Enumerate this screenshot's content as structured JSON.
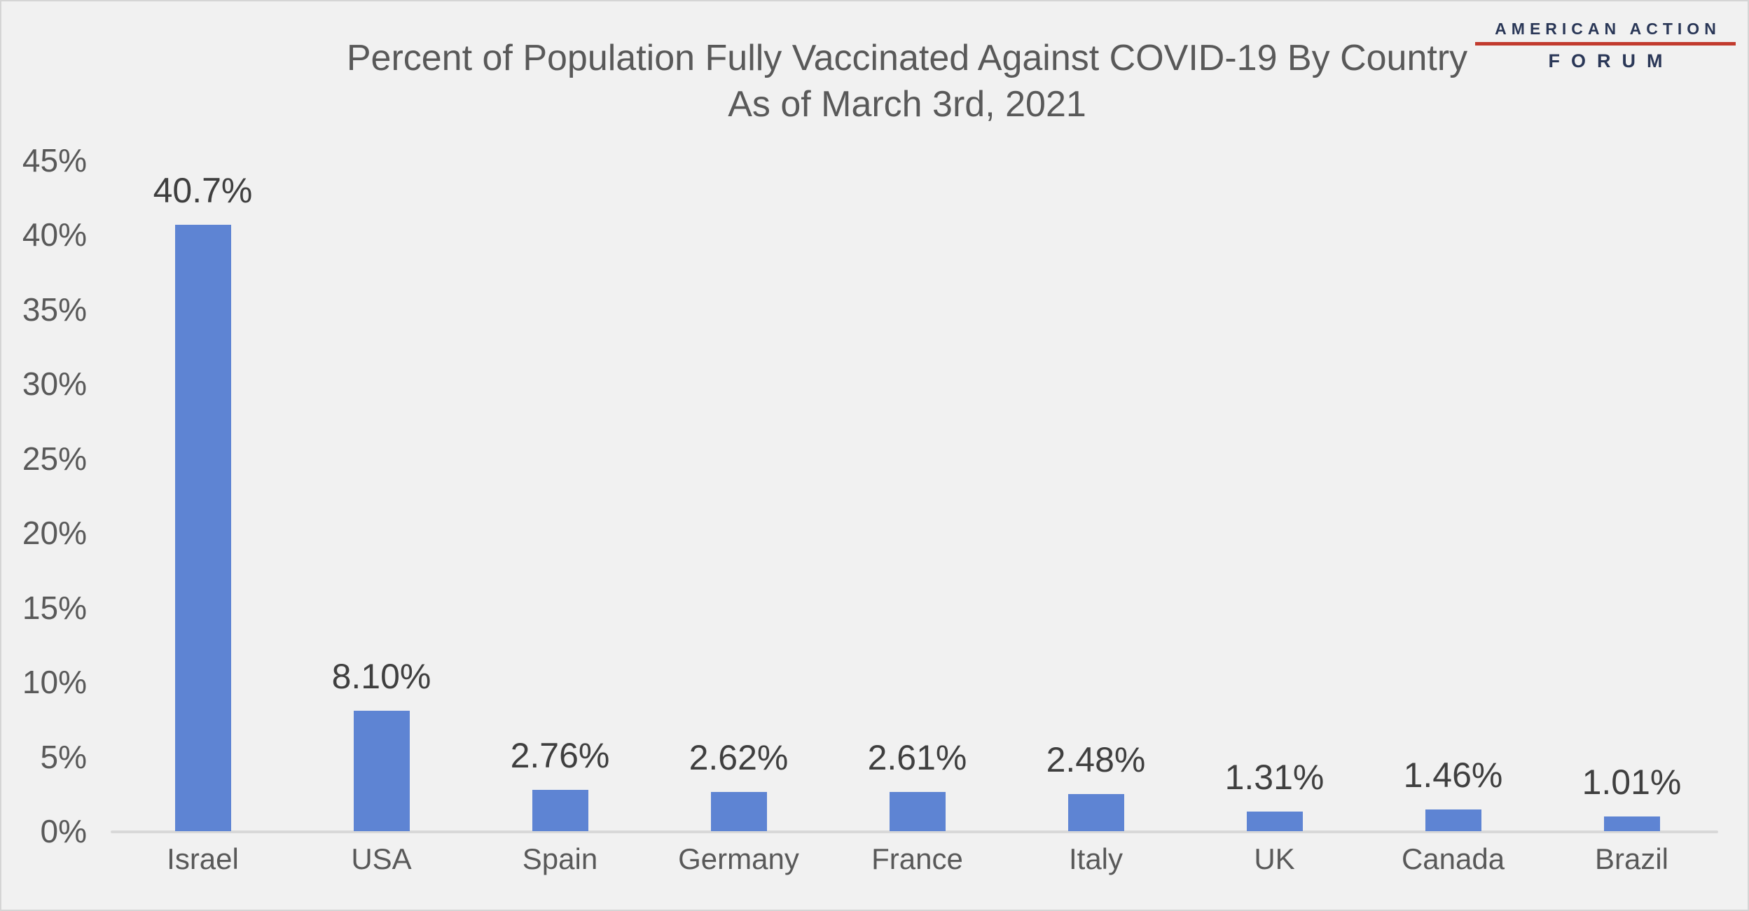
{
  "chart_data": {
    "type": "bar",
    "title_line1": "Percent of Population Fully Vaccinated Against COVID-19 By Country",
    "title_line2": "As of March 3rd, 2021",
    "categories": [
      "Israel",
      "USA",
      "Spain",
      "Germany",
      "France",
      "Italy",
      "UK",
      "Canada",
      "Brazil"
    ],
    "values": [
      40.7,
      8.1,
      2.76,
      2.62,
      2.61,
      2.48,
      1.31,
      1.46,
      1.01
    ],
    "value_labels": [
      "40.7%",
      "8.10%",
      "2.76%",
      "2.62%",
      "2.61%",
      "2.48%",
      "1.31%",
      "1.46%",
      "1.01%"
    ],
    "xlabel": "",
    "ylabel": "",
    "ylim": [
      0,
      45
    ],
    "y_ticks": [
      0,
      5,
      10,
      15,
      20,
      25,
      30,
      35,
      40,
      45
    ],
    "y_tick_labels": [
      "0%",
      "5%",
      "10%",
      "15%",
      "20%",
      "25%",
      "30%",
      "35%",
      "40%",
      "45%"
    ],
    "grid": "off",
    "legend": "none",
    "bar_color": "#5E84D3"
  },
  "logo": {
    "line1": "AMERICAN ACTION",
    "line2": "FORUM",
    "navy_color": "#2A3757",
    "red_color": "#C23B2E"
  },
  "colors": {
    "background": "#f1f1f1",
    "border": "#d5d5d5",
    "title": "#595959",
    "axis_labels": "#595959",
    "data_labels": "#3f3f3f",
    "axis_line": "#d8d8d8"
  }
}
